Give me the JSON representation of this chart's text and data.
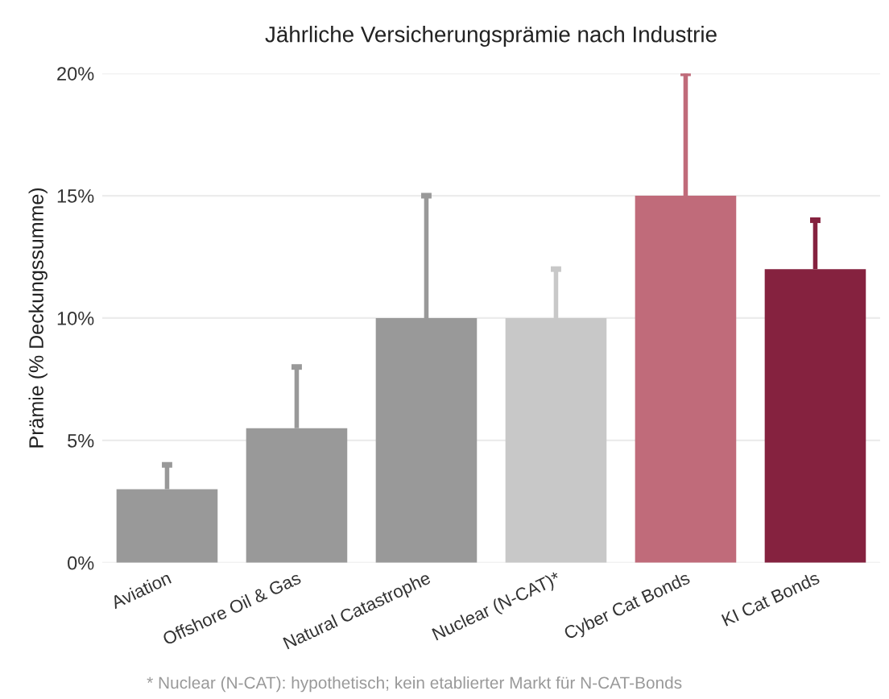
{
  "chart_data": {
    "type": "bar",
    "title": "Jährliche Versicherungsprämie nach Industrie",
    "ylabel": "Prämie (% Deckungssumme)",
    "categories": [
      "Aviation",
      "Offshore Oil & Gas",
      "Natural Catastrophe",
      "Nuclear (N-CAT)*",
      "Cyber Cat Bonds",
      "KI Cat Bonds"
    ],
    "values": [
      3,
      5.5,
      10,
      10,
      15,
      12
    ],
    "errors": [
      [
        3,
        4
      ],
      [
        5.5,
        8
      ],
      [
        10,
        15
      ],
      [
        10,
        12
      ],
      [
        15,
        20
      ],
      [
        12,
        14
      ]
    ],
    "colors": [
      "#999999",
      "#999999",
      "#999999",
      "#c8c8c8",
      "#c06b7a",
      "#85223f"
    ],
    "ylim": [
      0,
      20
    ],
    "yticks": [
      {
        "value": 0,
        "label": "0%"
      },
      {
        "value": 5,
        "label": "5%"
      },
      {
        "value": 10,
        "label": "10%"
      },
      {
        "value": 15,
        "label": "15%"
      },
      {
        "value": 20,
        "label": "20%"
      }
    ],
    "grid": "y",
    "annotations": [
      "* Nuclear (N-CAT): hypothetisch; kein etablierter Markt für N-CAT-Bonds"
    ]
  }
}
